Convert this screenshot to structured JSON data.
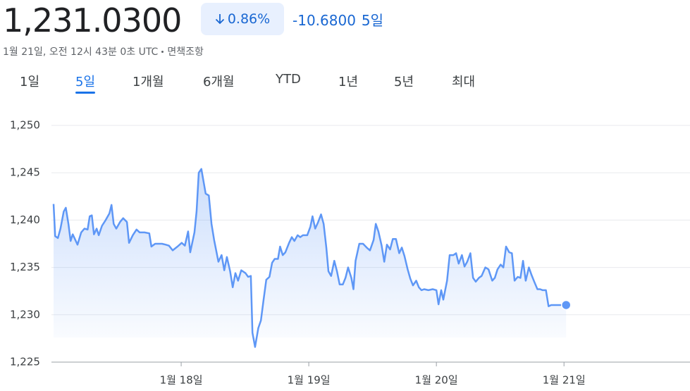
{
  "header": {
    "price": "1,231.0300",
    "change_percent": "0.86%",
    "change": "-10.6800",
    "period": "5일",
    "timestamp": "1월 21일, 오전 12시 43분 0초 UTC",
    "disclaimer": "면책조항"
  },
  "tabs": [
    "1일",
    "5일",
    "1개월",
    "6개월",
    "YTD",
    "1년",
    "5년",
    "최대"
  ],
  "selected_tab": 1,
  "chart_data": {
    "type": "line",
    "color": "#5e97f6",
    "grid": true,
    "xlim": [
      -0.4,
      119.7
    ],
    "xticks": [
      {
        "value": 24,
        "label": "1월 18일"
      },
      {
        "value": 48,
        "label": "1월 19일"
      },
      {
        "value": 72,
        "label": "1월 20일"
      },
      {
        "value": 96,
        "label": "1월 21일"
      }
    ],
    "ylim": [
      1225,
      1250
    ],
    "yticks": [
      {
        "value": 1225,
        "label": "1,225"
      },
      {
        "value": 1230,
        "label": "1,230"
      },
      {
        "value": 1235,
        "label": "1,235"
      },
      {
        "value": 1240,
        "label": "1,240"
      },
      {
        "value": 1245,
        "label": "1,245"
      },
      {
        "value": 1250,
        "label": "1,250"
      }
    ],
    "x": [
      0,
      0.3,
      0.8,
      1.3,
      1.9,
      2.3,
      2.8,
      3.2,
      3.6,
      4.5,
      5.2,
      5.8,
      6.4,
      6.8,
      7.2,
      7.6,
      8.1,
      8.5,
      9.1,
      9.8,
      10.5,
      10.9,
      11.3,
      11.8,
      12.5,
      13.1,
      13.8,
      14.2,
      14.9,
      15.6,
      16.2,
      17.1,
      18.0,
      18.4,
      19.1,
      20.4,
      21.1,
      21.7,
      22.4,
      23.3,
      24.1,
      24.7,
      25.3,
      25.7,
      26.5,
      26.9,
      27.3,
      27.8,
      28.6,
      29.2,
      29.7,
      30.2,
      31.0,
      31.6,
      32.1,
      32.6,
      33.2,
      33.7,
      34.2,
      34.7,
      35.3,
      36.1,
      36.6,
      37.1,
      37.4,
      37.9,
      38.5,
      39.0,
      39.5,
      40.0,
      40.6,
      41.1,
      41.6,
      42.2,
      42.6,
      43.1,
      43.6,
      44.3,
      44.8,
      45.3,
      45.9,
      46.4,
      46.9,
      47.7,
      48.3,
      48.7,
      49.2,
      49.7,
      50.3,
      50.8,
      51.3,
      51.7,
      52.2,
      52.8,
      53.3,
      53.8,
      54.4,
      54.9,
      55.4,
      56.0,
      56.4,
      56.8,
      57.5,
      58.2,
      58.9,
      59.5,
      60.2,
      60.6,
      61.1,
      61.7,
      62.2,
      62.7,
      63.3,
      63.8,
      64.4,
      65.0,
      65.5,
      66.0,
      66.6,
      67.1,
      67.6,
      68.2,
      68.7,
      69.2,
      69.7,
      70.5,
      71.3,
      72.0,
      72.4,
      72.9,
      73.3,
      74.0,
      74.5,
      75.2,
      75.7,
      76.2,
      76.8,
      77.3,
      77.8,
      78.4,
      78.9,
      79.4,
      80.0,
      80.5,
      81.2,
      81.8,
      82.5,
      83.0,
      83.5,
      84.1,
      84.6,
      85.1,
      85.7,
      86.2,
      86.7,
      87.3,
      87.8,
      88.3,
      88.8,
      89.4,
      89.9,
      90.4,
      91.0,
      91.5,
      92.0,
      92.6,
      93.1,
      93.6,
      96.4
    ],
    "values": [
      1241.7,
      1238.3,
      1238.1,
      1239.1,
      1240.9,
      1241.3,
      1239.6,
      1237.8,
      1238.5,
      1237.4,
      1238.7,
      1239.1,
      1239.0,
      1240.4,
      1240.5,
      1238.5,
      1239.1,
      1238.4,
      1239.4,
      1240.0,
      1240.7,
      1241.6,
      1239.6,
      1239.1,
      1239.8,
      1240.2,
      1239.8,
      1237.6,
      1238.4,
      1239.0,
      1238.7,
      1238.7,
      1238.6,
      1237.2,
      1237.5,
      1237.5,
      1237.4,
      1237.3,
      1236.8,
      1237.2,
      1237.6,
      1237.3,
      1238.8,
      1236.6,
      1238.7,
      1240.9,
      1245.0,
      1245.4,
      1242.8,
      1242.6,
      1239.6,
      1237.9,
      1235.6,
      1236.3,
      1234.7,
      1236.1,
      1234.6,
      1232.9,
      1234.4,
      1233.6,
      1234.7,
      1234.4,
      1234.0,
      1234.1,
      1228.1,
      1226.6,
      1228.6,
      1229.4,
      1231.6,
      1233.7,
      1234.0,
      1235.5,
      1235.9,
      1235.9,
      1237.2,
      1236.3,
      1236.6,
      1237.6,
      1238.2,
      1237.8,
      1238.4,
      1238.2,
      1238.4,
      1238.4,
      1239.3,
      1240.4,
      1239.1,
      1239.7,
      1240.6,
      1239.6,
      1237.1,
      1234.6,
      1234.1,
      1235.7,
      1234.6,
      1233.2,
      1233.2,
      1233.9,
      1235.0,
      1233.9,
      1232.7,
      1235.7,
      1237.5,
      1237.5,
      1237.1,
      1236.8,
      1237.9,
      1239.6,
      1238.8,
      1237.3,
      1235.6,
      1237.4,
      1236.9,
      1238.0,
      1238.0,
      1236.5,
      1237.1,
      1236.2,
      1234.8,
      1233.8,
      1233.1,
      1233.6,
      1232.9,
      1232.6,
      1232.7,
      1232.6,
      1232.7,
      1232.6,
      1231.1,
      1232.6,
      1231.6,
      1233.6,
      1236.3,
      1236.3,
      1236.5,
      1235.4,
      1236.3,
      1235.1,
      1235.6,
      1236.5,
      1233.9,
      1233.5,
      1233.9,
      1234.1,
      1235.0,
      1234.8,
      1233.6,
      1233.9,
      1234.8,
      1235.3,
      1235.0,
      1237.2,
      1236.6,
      1236.5,
      1233.6,
      1234.0,
      1233.9,
      1235.7,
      1233.6,
      1235.0,
      1234.2,
      1233.5,
      1232.7,
      1232.7,
      1232.6,
      1232.6,
      1230.9,
      1231.03,
      1231.03
    ]
  }
}
